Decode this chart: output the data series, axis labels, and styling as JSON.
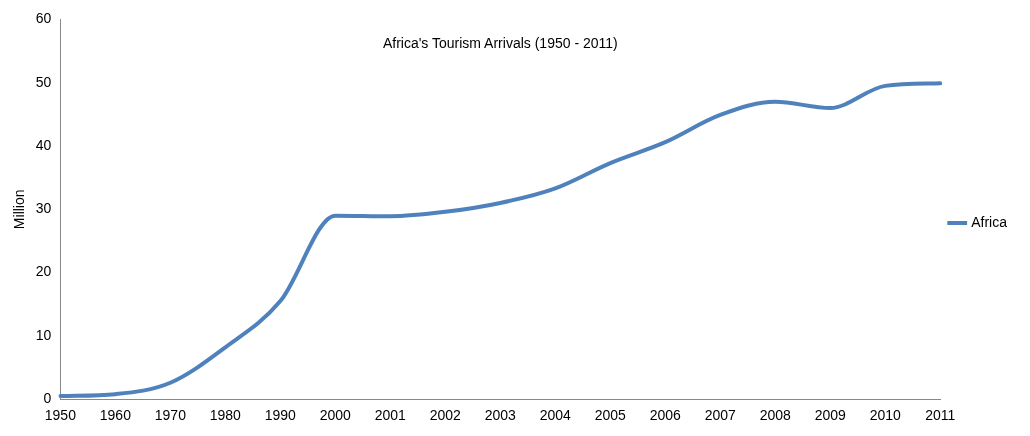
{
  "chart_data": {
    "type": "line",
    "title": "Africa's Tourism Arrivals (1950 - 2011)",
    "ylabel": "Million",
    "categories": [
      "1950",
      "1960",
      "1970",
      "1980",
      "1990",
      "2000",
      "2001",
      "2002",
      "2003",
      "2004",
      "2005",
      "2006",
      "2007",
      "2008",
      "2009",
      "2010",
      "2011"
    ],
    "series": [
      {
        "name": "Africa",
        "color": "#4f81bd",
        "values": [
          0.5,
          0.8,
          2.6,
          8.2,
          15.5,
          29,
          28.9,
          29.6,
          31,
          33.3,
          37.3,
          40.6,
          44.9,
          47,
          46,
          49.5,
          49.9
        ]
      }
    ],
    "ylim": [
      0,
      60
    ],
    "yticks": [
      0,
      10,
      20,
      30,
      40,
      50,
      60
    ],
    "grid": false,
    "legend": "right",
    "marker": "none",
    "line_style": "solid"
  }
}
